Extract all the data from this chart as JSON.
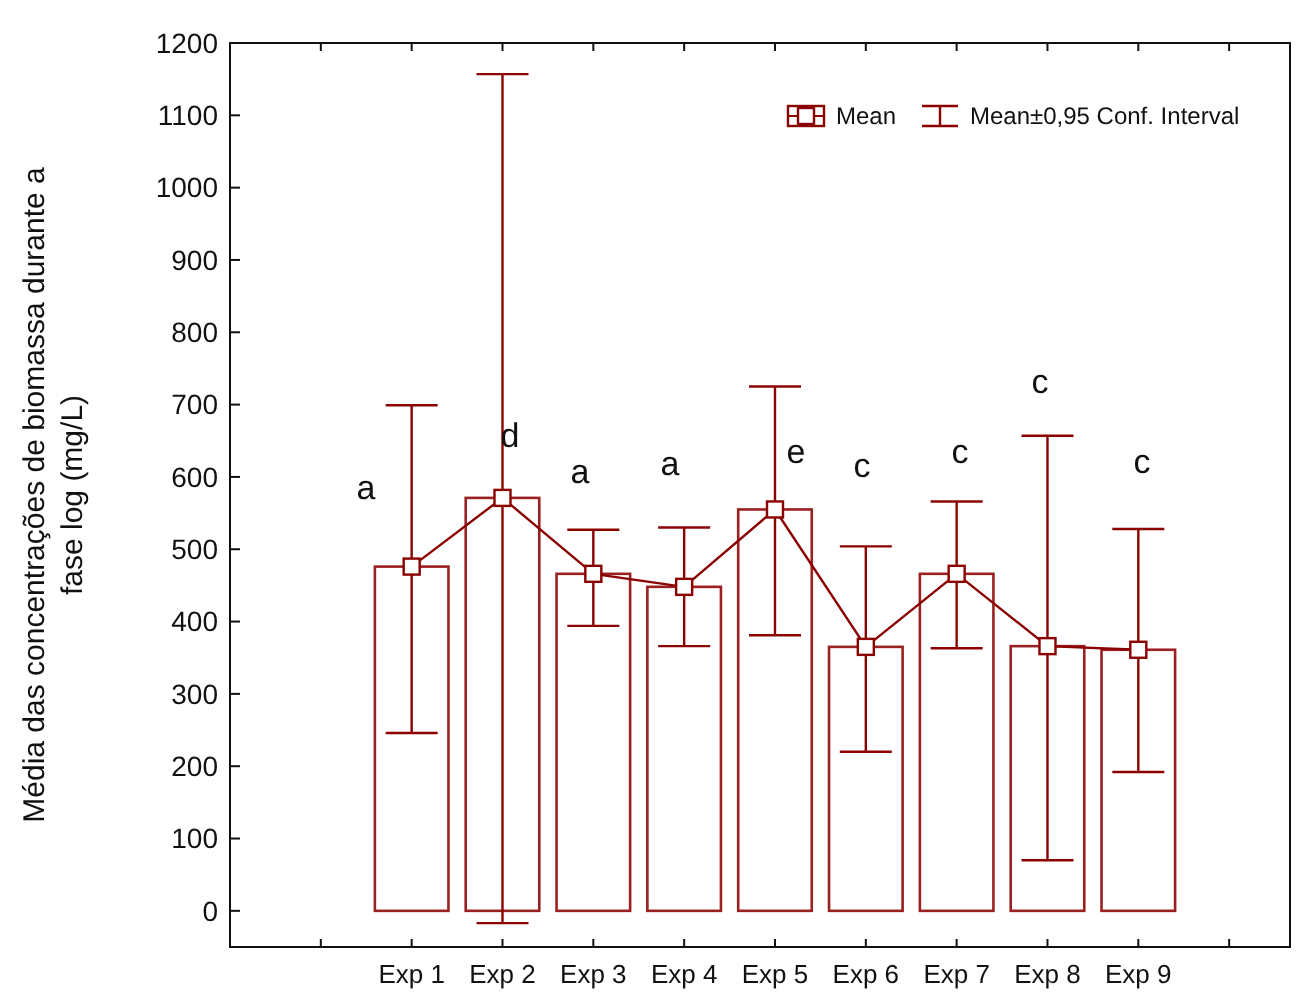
{
  "chart_data": {
    "type": "bar",
    "ylabel": "Média das concentrações de biomassa durante a\nfase log (mg/L)",
    "categories": [
      "Exp 1",
      "Exp 2",
      "Exp 3",
      "Exp 4",
      "Exp 5",
      "Exp 6",
      "Exp 7",
      "Exp 8",
      "Exp 9"
    ],
    "series": [
      {
        "color": "#9b2020",
        "values": [
          476,
          571,
          466,
          448,
          555,
          365,
          466,
          366,
          361
        ]
      },
      {
        "type": "line",
        "name": "Mean",
        "color": "#8b0000",
        "marker": "square",
        "line_style": "solid",
        "values": [
          476,
          571,
          466,
          448,
          555,
          365,
          466,
          366,
          361
        ],
        "errors": [
          [
            246,
            699
          ],
          [
            -17,
            1157
          ],
          [
            394,
            527
          ],
          [
            366,
            530
          ],
          [
            381,
            725
          ],
          [
            220,
            504
          ],
          [
            363,
            566
          ],
          [
            70,
            657
          ],
          [
            192,
            528
          ]
        ]
      }
    ],
    "annotations": [
      "Mean±0,95 Conf. Interval",
      "a",
      "d",
      "a",
      "a",
      "e",
      "c",
      "c",
      "c",
      "c"
    ],
    "ylim": [
      -50,
      1200
    ],
    "yticks": [
      0,
      100,
      200,
      300,
      400,
      500,
      600,
      700,
      800,
      900,
      1000,
      1100,
      1200
    ],
    "grid": false,
    "legend": "top right"
  }
}
